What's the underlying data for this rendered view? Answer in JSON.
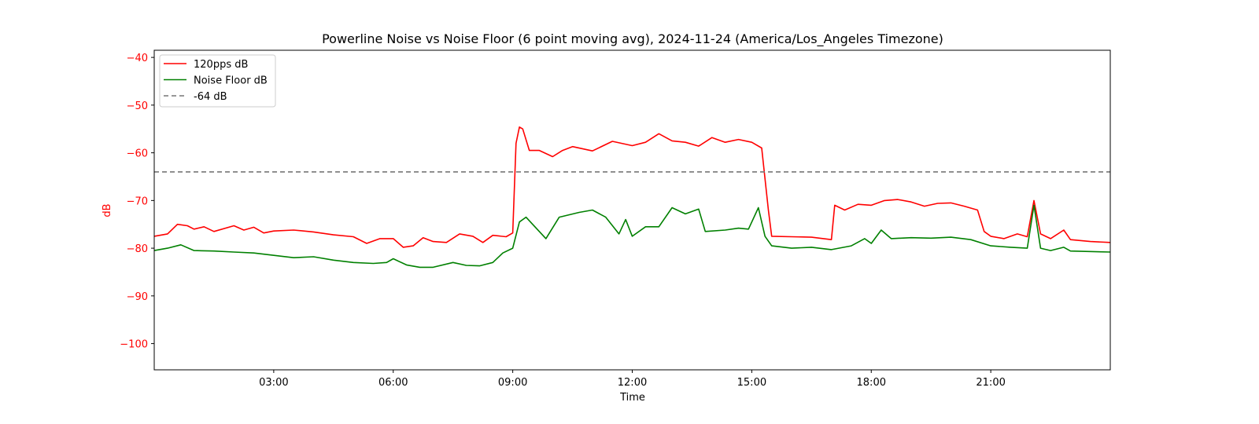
{
  "chart_data": {
    "type": "line",
    "title": "Powerline Noise vs Noise Floor (6 point moving avg), 2024-11-24 (America/Los_Angeles Timezone)",
    "xlabel": "Time",
    "ylabel": "dB",
    "xlim": [
      "00:00",
      "24:00"
    ],
    "ylim": [
      -105.5,
      -38.5
    ],
    "x_tick_labels": [
      "03:00",
      "06:00",
      "09:00",
      "12:00",
      "15:00",
      "18:00",
      "21:00"
    ],
    "y_ticks": [
      -40,
      -50,
      -60,
      -70,
      -80,
      -90,
      -100
    ],
    "y_tick_labels": [
      "−40",
      "−50",
      "−60",
      "−70",
      "−80",
      "−90",
      "−100"
    ],
    "y_axis_color": "#ff0000",
    "grid": false,
    "legend_position": "top-left",
    "series": [
      {
        "name": "120pps dB",
        "color": "#ff0000",
        "style": "solid",
        "points": [
          [
            "00:00",
            -77.5
          ],
          [
            "00:20",
            -77.0
          ],
          [
            "00:35",
            -75.0
          ],
          [
            "00:50",
            -75.3
          ],
          [
            "01:00",
            -76.0
          ],
          [
            "01:15",
            -75.5
          ],
          [
            "01:30",
            -76.5
          ],
          [
            "02:00",
            -75.3
          ],
          [
            "02:15",
            -76.2
          ],
          [
            "02:30",
            -75.6
          ],
          [
            "02:45",
            -76.8
          ],
          [
            "03:00",
            -76.4
          ],
          [
            "03:30",
            -76.2
          ],
          [
            "04:00",
            -76.6
          ],
          [
            "04:30",
            -77.2
          ],
          [
            "05:00",
            -77.6
          ],
          [
            "05:20",
            -79.0
          ],
          [
            "05:40",
            -78.0
          ],
          [
            "06:00",
            -78.0
          ],
          [
            "06:15",
            -79.8
          ],
          [
            "06:30",
            -79.5
          ],
          [
            "06:45",
            -77.8
          ],
          [
            "07:00",
            -78.6
          ],
          [
            "07:20",
            -78.8
          ],
          [
            "07:40",
            -77.0
          ],
          [
            "08:00",
            -77.5
          ],
          [
            "08:15",
            -78.8
          ],
          [
            "08:30",
            -77.3
          ],
          [
            "08:50",
            -77.6
          ],
          [
            "09:00",
            -76.8
          ],
          [
            "09:05",
            -58.0
          ],
          [
            "09:10",
            -54.6
          ],
          [
            "09:15",
            -55.0
          ],
          [
            "09:25",
            -59.5
          ],
          [
            "09:40",
            -59.5
          ],
          [
            "10:00",
            -60.8
          ],
          [
            "10:15",
            -59.5
          ],
          [
            "10:30",
            -58.7
          ],
          [
            "11:00",
            -59.6
          ],
          [
            "11:30",
            -57.6
          ],
          [
            "12:00",
            -58.5
          ],
          [
            "12:20",
            -57.8
          ],
          [
            "12:40",
            -56.0
          ],
          [
            "13:00",
            -57.5
          ],
          [
            "13:20",
            -57.8
          ],
          [
            "13:40",
            -58.6
          ],
          [
            "14:00",
            -56.8
          ],
          [
            "14:20",
            -57.8
          ],
          [
            "14:40",
            -57.2
          ],
          [
            "15:00",
            -57.8
          ],
          [
            "15:15",
            -59.0
          ],
          [
            "15:25",
            -72.0
          ],
          [
            "15:30",
            -77.5
          ],
          [
            "16:00",
            -77.6
          ],
          [
            "16:30",
            -77.7
          ],
          [
            "17:00",
            -78.2
          ],
          [
            "17:05",
            -71.0
          ],
          [
            "17:20",
            -72.0
          ],
          [
            "17:40",
            -70.8
          ],
          [
            "18:00",
            -71.0
          ],
          [
            "18:20",
            -70.0
          ],
          [
            "18:40",
            -69.8
          ],
          [
            "19:00",
            -70.3
          ],
          [
            "19:20",
            -71.2
          ],
          [
            "19:40",
            -70.6
          ],
          [
            "20:00",
            -70.5
          ],
          [
            "20:20",
            -71.2
          ],
          [
            "20:40",
            -72.0
          ],
          [
            "20:50",
            -76.5
          ],
          [
            "21:00",
            -77.5
          ],
          [
            "21:20",
            -78.0
          ],
          [
            "21:40",
            -77.0
          ],
          [
            "21:55",
            -77.6
          ],
          [
            "22:05",
            -70.0
          ],
          [
            "22:15",
            -77.0
          ],
          [
            "22:30",
            -78.0
          ],
          [
            "22:50",
            -76.2
          ],
          [
            "23:00",
            -78.2
          ],
          [
            "23:30",
            -78.6
          ],
          [
            "24:00",
            -78.8
          ]
        ]
      },
      {
        "name": "Noise Floor dB",
        "color": "#008000",
        "style": "solid",
        "points": [
          [
            "00:00",
            -80.5
          ],
          [
            "00:20",
            -80.0
          ],
          [
            "00:40",
            -79.3
          ],
          [
            "01:00",
            -80.5
          ],
          [
            "01:30",
            -80.6
          ],
          [
            "02:00",
            -80.8
          ],
          [
            "02:30",
            -81.0
          ],
          [
            "03:00",
            -81.5
          ],
          [
            "03:30",
            -82.0
          ],
          [
            "04:00",
            -81.8
          ],
          [
            "04:30",
            -82.5
          ],
          [
            "05:00",
            -83.0
          ],
          [
            "05:30",
            -83.2
          ],
          [
            "05:50",
            -83.0
          ],
          [
            "06:00",
            -82.2
          ],
          [
            "06:20",
            -83.5
          ],
          [
            "06:40",
            -84.0
          ],
          [
            "07:00",
            -84.0
          ],
          [
            "07:30",
            -83.0
          ],
          [
            "07:50",
            -83.6
          ],
          [
            "08:10",
            -83.7
          ],
          [
            "08:30",
            -83.0
          ],
          [
            "08:45",
            -81.0
          ],
          [
            "09:00",
            -80.0
          ],
          [
            "09:10",
            -74.5
          ],
          [
            "09:20",
            -73.5
          ],
          [
            "09:30",
            -75.0
          ],
          [
            "09:50",
            -78.0
          ],
          [
            "10:10",
            -73.5
          ],
          [
            "10:40",
            -72.5
          ],
          [
            "11:00",
            -72.0
          ],
          [
            "11:20",
            -73.5
          ],
          [
            "11:40",
            -77.0
          ],
          [
            "11:50",
            -74.0
          ],
          [
            "12:00",
            -77.5
          ],
          [
            "12:20",
            -75.5
          ],
          [
            "12:40",
            -75.5
          ],
          [
            "13:00",
            -71.5
          ],
          [
            "13:20",
            -72.8
          ],
          [
            "13:40",
            -71.8
          ],
          [
            "13:50",
            -76.5
          ],
          [
            "14:20",
            -76.2
          ],
          [
            "14:40",
            -75.8
          ],
          [
            "14:55",
            -76.0
          ],
          [
            "15:10",
            -71.5
          ],
          [
            "15:20",
            -77.5
          ],
          [
            "15:30",
            -79.5
          ],
          [
            "16:00",
            -80.0
          ],
          [
            "16:30",
            -79.8
          ],
          [
            "17:00",
            -80.3
          ],
          [
            "17:30",
            -79.5
          ],
          [
            "17:50",
            -78.0
          ],
          [
            "18:00",
            -79.0
          ],
          [
            "18:15",
            -76.2
          ],
          [
            "18:30",
            -78.0
          ],
          [
            "19:00",
            -77.8
          ],
          [
            "19:30",
            -77.9
          ],
          [
            "20:00",
            -77.7
          ],
          [
            "20:30",
            -78.2
          ],
          [
            "21:00",
            -79.5
          ],
          [
            "21:30",
            -79.8
          ],
          [
            "21:55",
            -80.0
          ],
          [
            "22:05",
            -71.0
          ],
          [
            "22:15",
            -80.0
          ],
          [
            "22:30",
            -80.5
          ],
          [
            "22:50",
            -79.8
          ],
          [
            "23:00",
            -80.6
          ],
          [
            "24:00",
            -80.8
          ]
        ]
      },
      {
        "name": "-64 dB",
        "color": "#777777",
        "style": "dashed",
        "points": [
          [
            "00:00",
            -64
          ],
          [
            "24:00",
            -64
          ]
        ]
      }
    ]
  }
}
